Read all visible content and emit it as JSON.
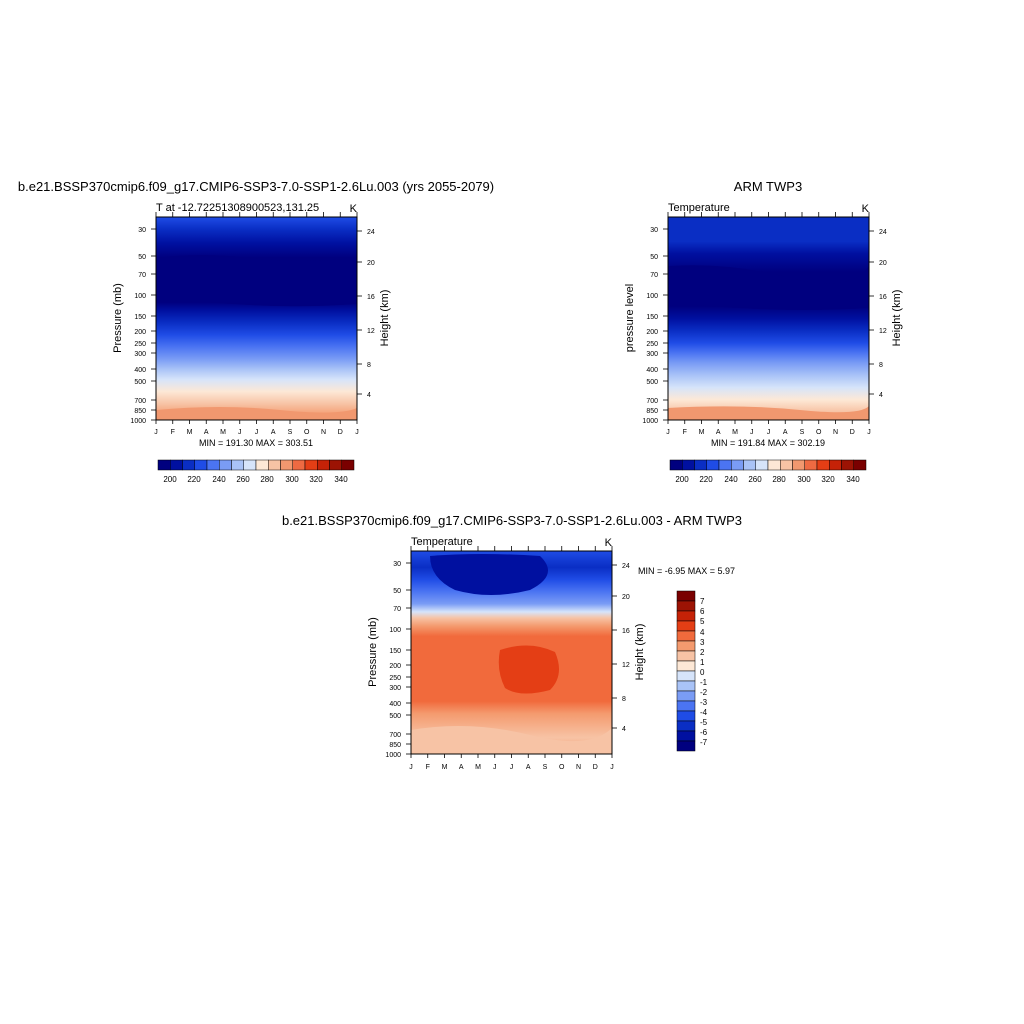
{
  "chart_data": [
    {
      "type": "heatmap",
      "title": "b.e21.BSSP370cmip6.f09_g17.CMIP6-SSP3-7.0-SSP1-2.6Lu.003 (yrs 2055-2079)",
      "left_label": "T at -12.72251308900523,131.25",
      "right_label": "K",
      "ylabel": "Pressure (mb)",
      "ylabel_right": "Height (km)",
      "x_ticks": [
        "J",
        "F",
        "M",
        "A",
        "M",
        "J",
        "J",
        "A",
        "S",
        "O",
        "N",
        "D",
        "J"
      ],
      "y_ticks": [
        30,
        50,
        70,
        100,
        150,
        200,
        250,
        300,
        400,
        500,
        700,
        850,
        1000
      ],
      "y_ticks_right": [
        24,
        20,
        16,
        12,
        8,
        4
      ],
      "min_max_text": "MIN = 191.30 MAX = 303.51",
      "colorbar": {
        "labels": [
          "200",
          "220",
          "240",
          "260",
          "280",
          "300",
          "320",
          "340"
        ],
        "colors": [
          "#00007f",
          "#0010a0",
          "#0a2ec4",
          "#1f4ce6",
          "#4b74f2",
          "#7a9cf5",
          "#a9c3f7",
          "#d6e4fa",
          "#fde8d6",
          "#f7c3a5",
          "#f1986f",
          "#ee6a42",
          "#e43e15",
          "#c52207",
          "#9c1304",
          "#7a0000"
        ]
      }
    },
    {
      "type": "heatmap",
      "title": "ARM TWP3",
      "left_label": "Temperature",
      "right_label": "K",
      "ylabel": "pressure level",
      "ylabel_right": "Height (km)",
      "x_ticks": [
        "J",
        "F",
        "M",
        "A",
        "M",
        "J",
        "J",
        "A",
        "S",
        "O",
        "N",
        "D",
        "J"
      ],
      "y_ticks": [
        30,
        50,
        70,
        100,
        150,
        200,
        250,
        300,
        400,
        500,
        700,
        850,
        1000
      ],
      "y_ticks_right": [
        24,
        20,
        16,
        12,
        8,
        4
      ],
      "min_max_text": "MIN = 191.84 MAX = 302.19",
      "colorbar": {
        "labels": [
          "200",
          "220",
          "240",
          "260",
          "280",
          "300",
          "320",
          "340"
        ],
        "colors": [
          "#00007f",
          "#0010a0",
          "#0a2ec4",
          "#1f4ce6",
          "#4b74f2",
          "#7a9cf5",
          "#a9c3f7",
          "#d6e4fa",
          "#fde8d6",
          "#f7c3a5",
          "#f1986f",
          "#ee6a42",
          "#e43e15",
          "#c52207",
          "#9c1304",
          "#7a0000"
        ]
      }
    },
    {
      "type": "heatmap",
      "title": "b.e21.BSSP370cmip6.f09_g17.CMIP6-SSP3-7.0-SSP1-2.6Lu.003 - ARM TWP3",
      "left_label": "Temperature",
      "right_label": "K",
      "ylabel": "Pressure (mb)",
      "ylabel_right": "Height (km)",
      "x_ticks": [
        "J",
        "F",
        "M",
        "A",
        "M",
        "J",
        "J",
        "A",
        "S",
        "O",
        "N",
        "D",
        "J"
      ],
      "y_ticks": [
        30,
        50,
        70,
        100,
        150,
        200,
        250,
        300,
        400,
        500,
        700,
        850,
        1000
      ],
      "y_ticks_right": [
        24,
        20,
        16,
        12,
        8,
        4
      ],
      "min_max_text": "MIN =  -6.95 MAX =   5.97",
      "colorbar": {
        "labels": [
          "7",
          "6",
          "5",
          "4",
          "3",
          "2",
          "1",
          "0",
          "-1",
          "-2",
          "-3",
          "-4",
          "-5",
          "-6",
          "-7"
        ],
        "colors": [
          "#7a0000",
          "#9c1304",
          "#c52207",
          "#e43e15",
          "#f16a3c",
          "#f49a6e",
          "#f7c3a5",
          "#fde8d6",
          "#d6e4fa",
          "#a9c3f7",
          "#7a9cf5",
          "#4b74f2",
          "#1f4ce6",
          "#0a2ec4",
          "#0010a0",
          "#00007f"
        ]
      }
    }
  ]
}
